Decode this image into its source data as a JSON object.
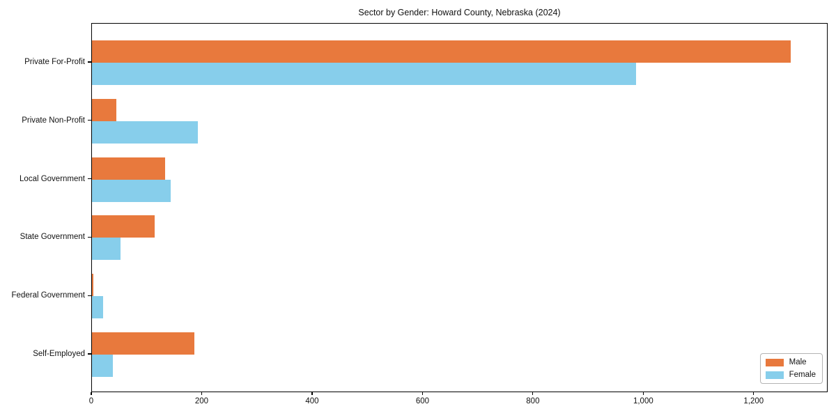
{
  "chart_data": {
    "type": "bar",
    "orientation": "horizontal",
    "title": "Sector by Gender: Howard County, Nebraska (2024)",
    "categories": [
      "Private For-Profit",
      "Private Non-Profit",
      "Local Government",
      "State Government",
      "Federal Government",
      "Self-Employed"
    ],
    "series": [
      {
        "name": "Male",
        "color": "#E8793D",
        "values": [
          1268,
          44,
          133,
          114,
          2,
          186
        ]
      },
      {
        "name": "Female",
        "color": "#87CEEB",
        "values": [
          987,
          192,
          143,
          52,
          20,
          38
        ]
      }
    ],
    "xlim": [
      0,
      1334
    ],
    "xticks": [
      0,
      200,
      400,
      600,
      800,
      1000,
      1200
    ],
    "xtick_labels": [
      "0",
      "200",
      "400",
      "600",
      "800",
      "1,000",
      "1,200"
    ],
    "xlabel": "",
    "ylabel": "",
    "grid": false,
    "legend_position": "lower right",
    "plot_border_color": "#000000",
    "background_color": "#ffffff"
  }
}
